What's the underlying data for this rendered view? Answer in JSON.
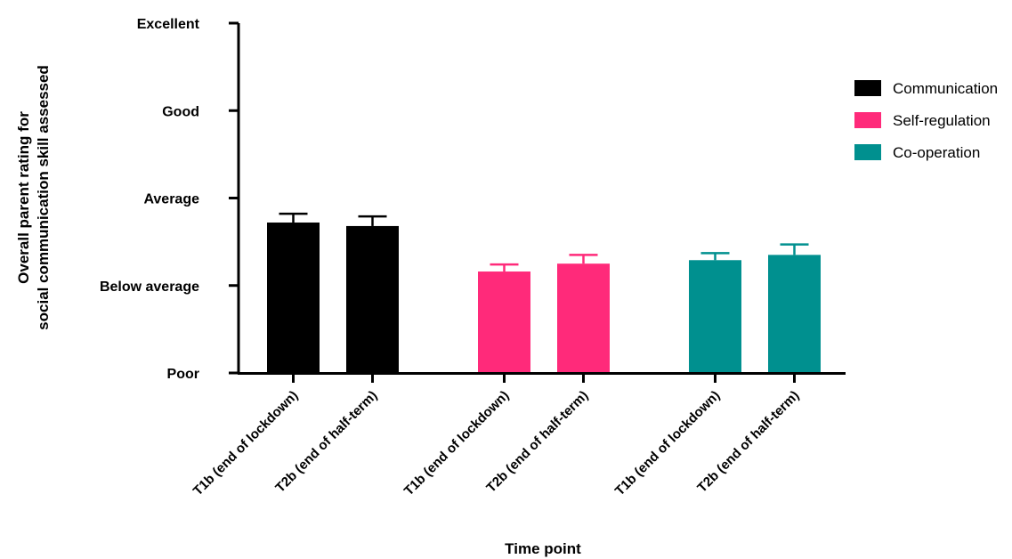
{
  "chart_data": {
    "type": "bar",
    "ylabel_lines": [
      "Overall parent rating for",
      "social communication skill assessed"
    ],
    "xlabel": "Time point",
    "ylim": [
      0,
      4
    ],
    "yticks": [
      {
        "value": 0,
        "label": "Poor"
      },
      {
        "value": 1,
        "label": "Below average"
      },
      {
        "value": 2,
        "label": "Average"
      },
      {
        "value": 3,
        "label": "Good"
      },
      {
        "value": 4,
        "label": "Excellent"
      }
    ],
    "legend_position": "top-right",
    "series": [
      {
        "name": "Communication",
        "color": "#000000",
        "categories": [
          "T1b (end of lockdown)",
          "T2b (end of half-term)"
        ],
        "values": [
          1.72,
          1.68
        ],
        "errors": [
          0.1,
          0.11
        ]
      },
      {
        "name": "Self-regulation",
        "color": "#ff2a7a",
        "categories": [
          "T1b (end of lockdown)",
          "T2b (end of half-term)"
        ],
        "values": [
          1.16,
          1.25
        ],
        "errors": [
          0.08,
          0.1
        ]
      },
      {
        "name": "Co-operation",
        "color": "#00908f",
        "categories": [
          "T1b (end of lockdown)",
          "T2b (end of half-term)"
        ],
        "values": [
          1.29,
          1.35
        ],
        "errors": [
          0.08,
          0.12
        ]
      }
    ]
  }
}
